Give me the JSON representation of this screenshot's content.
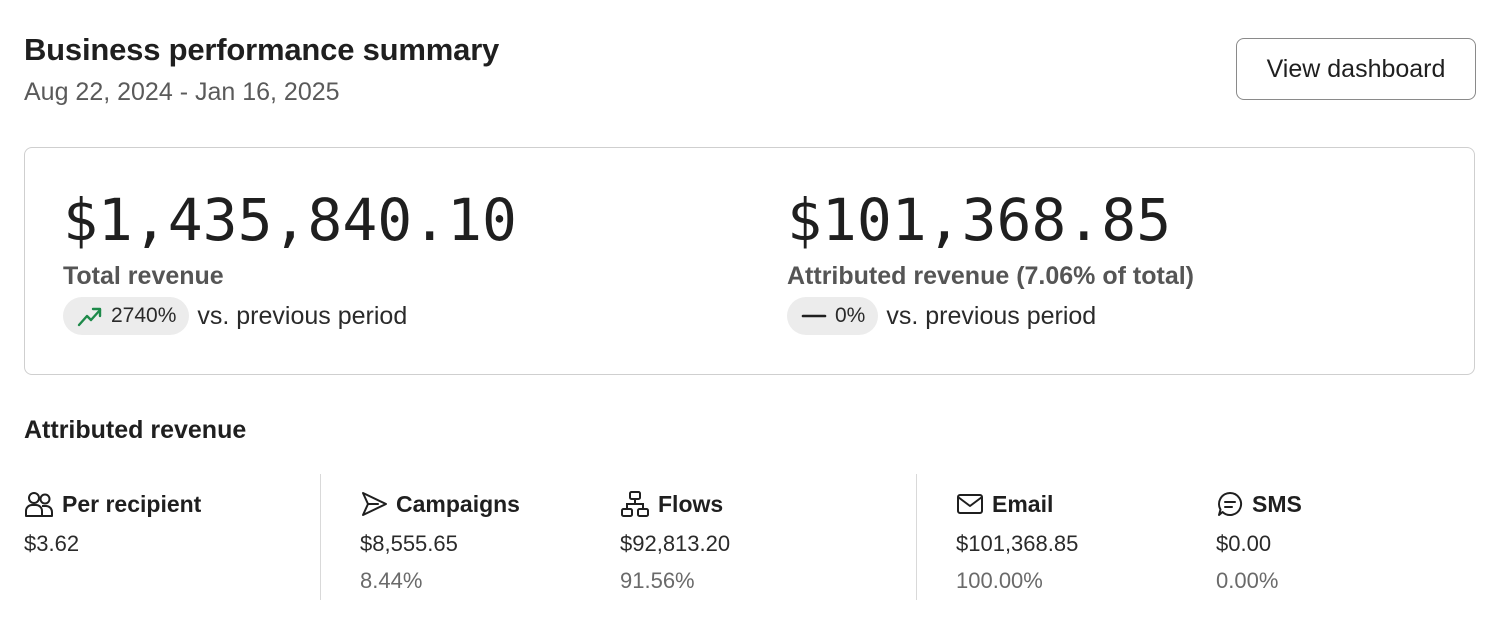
{
  "header": {
    "title": "Business performance summary",
    "date_range": "Aug 22, 2024 - Jan 16, 2025",
    "view_button_label": "View dashboard"
  },
  "summary": {
    "total": {
      "value": "$1,435,840.10",
      "label": "Total revenue",
      "change": "2740%",
      "change_icon": "trend-up-icon",
      "compare_text": "vs. previous period"
    },
    "attributed": {
      "value": "$101,368.85",
      "label": "Attributed revenue (7.06% of total)",
      "change": "0%",
      "change_icon": "dash-icon",
      "compare_text": "vs. previous period"
    }
  },
  "attributed_section": {
    "title": "Attributed revenue",
    "stats": [
      {
        "icon": "people-icon",
        "label": "Per recipient",
        "value": "$3.62",
        "percent": ""
      },
      {
        "icon": "send-icon",
        "label": "Campaigns",
        "value": "$8,555.65",
        "percent": "8.44%"
      },
      {
        "icon": "flow-icon",
        "label": "Flows",
        "value": "$92,813.20",
        "percent": "91.56%"
      },
      {
        "icon": "mail-icon",
        "label": "Email",
        "value": "$101,368.85",
        "percent": "100.00%"
      },
      {
        "icon": "sms-icon",
        "label": "SMS",
        "value": "$0.00",
        "percent": "0.00%"
      }
    ]
  },
  "colors": {
    "trend_up": "#1e8a4a",
    "card_border": "#cfcfcf",
    "pill_bg": "#ececec"
  }
}
